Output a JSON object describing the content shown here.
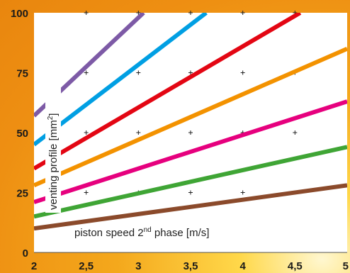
{
  "chart_data": {
    "type": "line",
    "title": "",
    "xlabel": "piston speed 2nd phase [m/s]",
    "xlabel_parts": {
      "pre": "piston speed 2",
      "sup": "nd",
      "post": " phase [m/s]"
    },
    "ylabel": "venting profile [mm2]",
    "ylabel_parts": {
      "pre": "venting profile [mm",
      "sup": "2",
      "post": "]"
    },
    "xlim": [
      2,
      5
    ],
    "ylim": [
      0,
      100
    ],
    "x_ticks": [
      "2",
      "2,5",
      "3",
      "3,5",
      "4",
      "4,5",
      "5"
    ],
    "y_ticks": [
      "0",
      "25",
      "50",
      "75",
      "100"
    ],
    "grid": "cross markers at gridline intersections",
    "series": [
      {
        "color": "#8b4a2b",
        "x": [
          2,
          5
        ],
        "y": [
          10,
          28
        ]
      },
      {
        "color": "#3fa535",
        "x": [
          2,
          5
        ],
        "y": [
          15,
          44
        ]
      },
      {
        "color": "#e6007e",
        "x": [
          2,
          5
        ],
        "y": [
          21,
          63
        ]
      },
      {
        "color": "#f39200",
        "x": [
          2,
          5
        ],
        "y": [
          28,
          85
        ]
      },
      {
        "color": "#e30613",
        "x": [
          2,
          4.55
        ],
        "y": [
          35,
          100
        ]
      },
      {
        "color": "#009fe3",
        "x": [
          2,
          3.65
        ],
        "y": [
          45,
          100
        ]
      },
      {
        "color": "#7d5aa6",
        "x": [
          2,
          3.05
        ],
        "y": [
          57,
          100
        ]
      }
    ]
  }
}
